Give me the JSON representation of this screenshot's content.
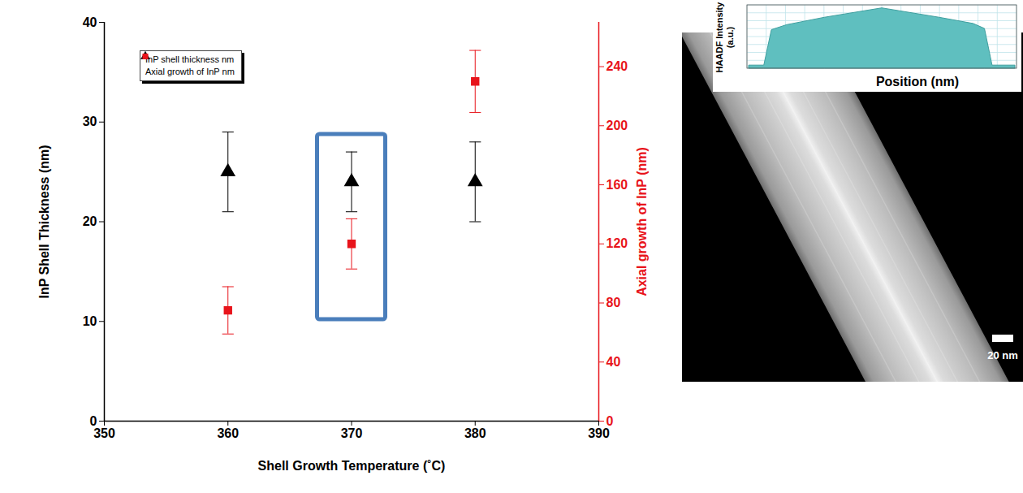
{
  "chart_data": {
    "type": "scatter",
    "xlabel": "Shell Growth Temperature (˚C)",
    "ylabel": "InP Shell Thickness (nm)",
    "y2label": "Axial growth of InP (nm)",
    "x": [
      360,
      370,
      380
    ],
    "xlim": [
      350,
      390
    ],
    "xticks": [
      350,
      360,
      370,
      380,
      390
    ],
    "ylim": [
      0,
      40
    ],
    "yticks": [
      0,
      10,
      20,
      30,
      40
    ],
    "y2lim": [
      0,
      270
    ],
    "y2ticks": [
      0,
      40,
      80,
      120,
      160,
      200,
      240
    ],
    "series": [
      {
        "name": "InP shell thickness nm",
        "color": "#000000",
        "marker": "triangle",
        "values": [
          25,
          24,
          24
        ],
        "errors": [
          4,
          3,
          4
        ]
      },
      {
        "name": "Axial growth of InP nm",
        "color": "#e8141b",
        "marker": "square",
        "axis": "y2",
        "values": [
          75,
          120,
          230
        ],
        "errors": [
          16,
          17,
          21
        ]
      }
    ],
    "legend": "upper left",
    "grid": false,
    "annotations": [
      {
        "type": "box",
        "x": 370,
        "color": "#4a7ebb"
      }
    ]
  },
  "image_panel": {
    "inset": {
      "ylabel": "HAADF Intensity (a.u.)",
      "xlabel": "Position (nm)",
      "profile": {
        "position": [
          0,
          8,
          12,
          20,
          40,
          70,
          100,
          118,
          124,
          128,
          140
        ],
        "intensity": [
          5,
          5,
          62,
          70,
          82,
          97,
          82,
          72,
          64,
          5,
          5
        ]
      }
    },
    "scale_bar": "20 nm"
  }
}
